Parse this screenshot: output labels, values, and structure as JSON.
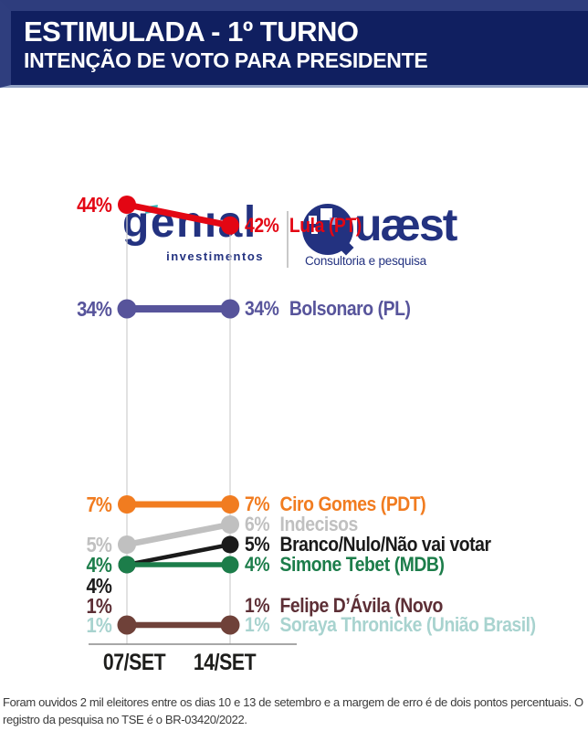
{
  "header": {
    "title": "ESTIMULADA - 1º TURNO",
    "subtitle": "INTENÇÃO DE VOTO PARA PRESIDENTE"
  },
  "logos": {
    "genial": {
      "name": "genıal",
      "sub": "investimentos"
    },
    "quaest": {
      "name": "uæst",
      "sub": "Consultoria e pesquisa"
    }
  },
  "chart_data": {
    "type": "line",
    "subtype": "slope-chart",
    "x": [
      "07/SET",
      "14/SET"
    ],
    "value_suffix": "%",
    "ylim": [
      0,
      50
    ],
    "grid": "vertical-at-ticks",
    "legend": "inline-right-of-last-point",
    "series": [
      {
        "name": "Lula (PT)",
        "values": [
          44,
          42
        ],
        "color": "#e30613"
      },
      {
        "name": "Bolsonaro (PL)",
        "values": [
          34,
          34
        ],
        "color": "#57549b"
      },
      {
        "name": "Ciro Gomes (PDT)",
        "values": [
          7,
          7
        ],
        "color": "#f17c20"
      },
      {
        "name": "Indecisos",
        "values": [
          5,
          6
        ],
        "color": "#c0c0c0"
      },
      {
        "name": "Branco/Nulo/Não vai votar",
        "values": [
          4,
          5
        ],
        "color": "#1a1a1a",
        "left_label_dy": 23
      },
      {
        "name": "Simone Tebet (MDB)",
        "values": [
          4,
          4
        ],
        "color": "#1c7d4a"
      },
      {
        "name": "Felipe D’Ávila (Novo",
        "values": [
          1,
          1
        ],
        "color": "#5d2f36",
        "line_color": "#6f4139",
        "left_label_dy": -21,
        "right_label_dy": -21
      },
      {
        "name": "Soraya Thronicke (União Brasil)",
        "values": [
          1,
          1
        ],
        "color": "#a8d3cf",
        "draw_line": false
      }
    ]
  },
  "footer": {
    "note": "Foram ouvidos 2 mil eleitores entre os dias 10 e 13 de setembro e a margem de erro é de dois pontos percentuais. O registro da pesquisa no TSE é o BR-03420/2022."
  }
}
